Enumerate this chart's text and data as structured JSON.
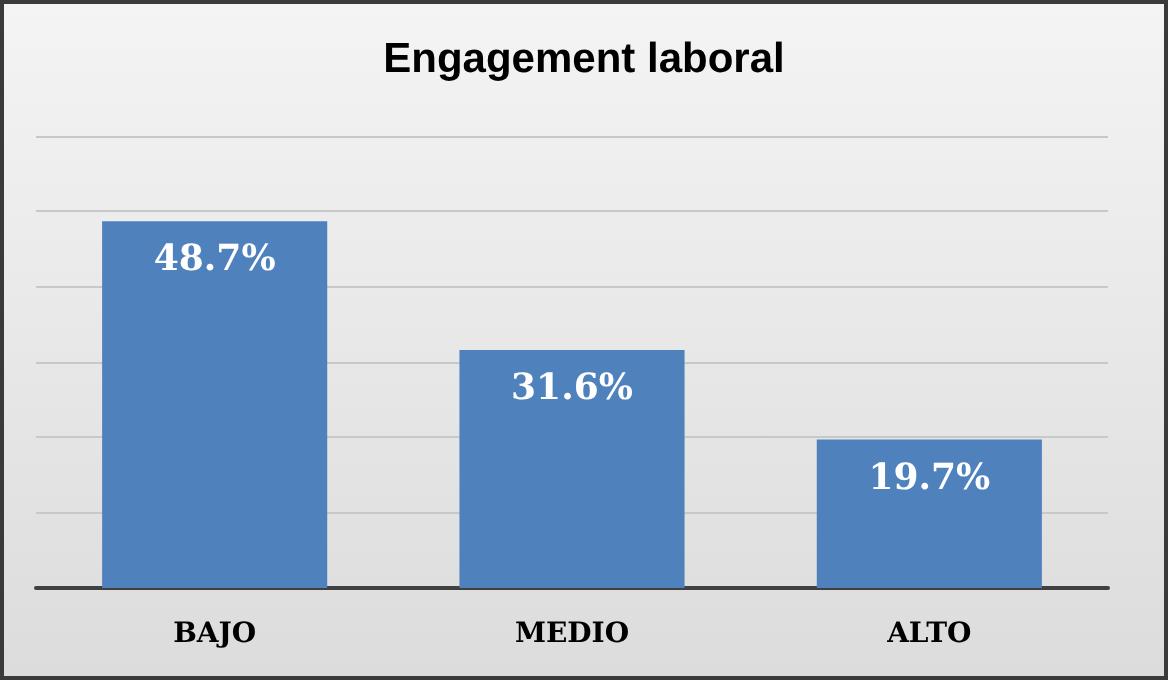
{
  "chart_data": {
    "type": "bar",
    "title": "Engagement laboral",
    "categories": [
      "BAJO",
      "MEDIO",
      "ALTO"
    ],
    "values": [
      48.7,
      31.6,
      19.7
    ],
    "color": "#4f81bd",
    "value_labels": [
      "48.7%",
      "31.6%",
      "19.7%"
    ],
    "ylim": [
      0,
      60
    ],
    "yticks": [
      {
        "value": 0,
        "label": null
      },
      {
        "value": 10,
        "label": null
      },
      {
        "value": 20,
        "label": null
      },
      {
        "value": 30,
        "label": null
      },
      {
        "value": 40,
        "label": null
      },
      {
        "value": 50,
        "label": null
      },
      {
        "value": 60,
        "label": null
      }
    ],
    "grid": "y",
    "tick_labels": "x"
  }
}
